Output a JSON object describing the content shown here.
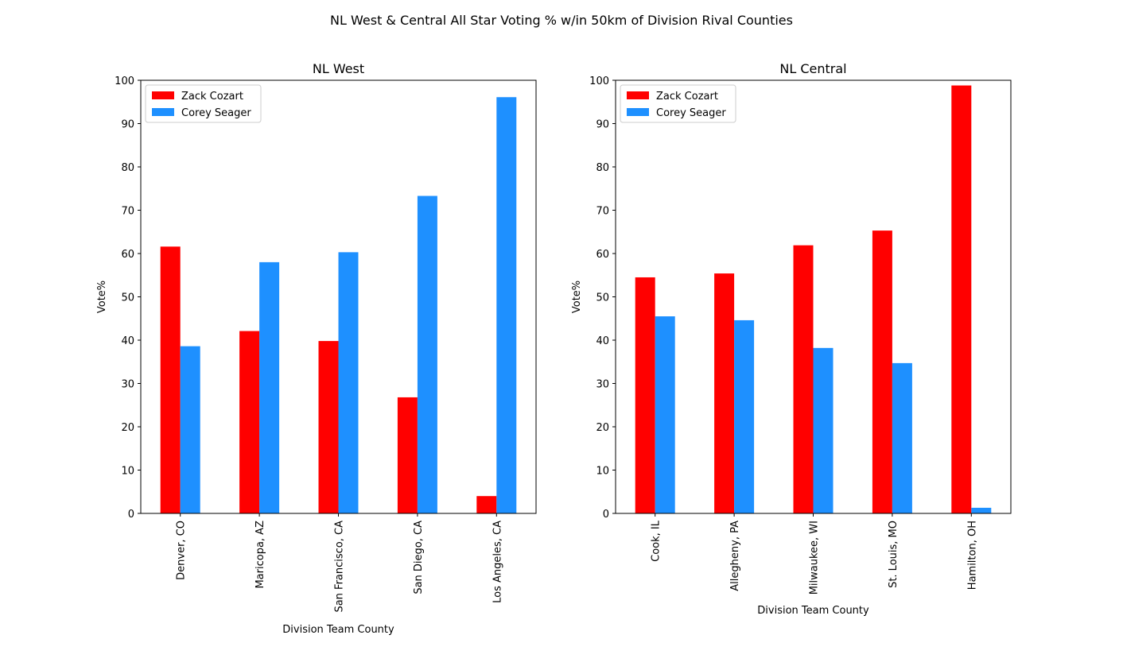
{
  "figure": {
    "title": "NL West & Central All Star Voting % w/in 50km of Division Rival Counties"
  },
  "chart_data": [
    {
      "type": "bar",
      "title": "NL West",
      "xlabel": "Division Team County",
      "ylabel": "Vote%",
      "ylim": [
        0,
        100
      ],
      "yticks": [
        0,
        10,
        20,
        30,
        40,
        50,
        60,
        70,
        80,
        90,
        100
      ],
      "categories": [
        "Denver, CO",
        "Maricopa, AZ",
        "San Francisco, CA",
        "San Diego, CA",
        "Los Angeles, CA"
      ],
      "series": [
        {
          "name": "Zack Cozart",
          "color": "#ff0000",
          "values": [
            61.6,
            42.1,
            39.8,
            26.8,
            4.0
          ]
        },
        {
          "name": "Corey Seager",
          "color": "#1e90ff",
          "values": [
            38.6,
            58.0,
            60.3,
            73.3,
            96.1
          ]
        }
      ],
      "legend": "upper-left",
      "grid": false
    },
    {
      "type": "bar",
      "title": "NL Central",
      "xlabel": "Division Team County",
      "ylabel": "Vote%",
      "ylim": [
        0,
        100
      ],
      "yticks": [
        0,
        10,
        20,
        30,
        40,
        50,
        60,
        70,
        80,
        90,
        100
      ],
      "categories": [
        "Cook, IL",
        "Allegheny, PA",
        "Milwaukee, WI",
        "St. Louis, MO",
        "Hamilton, OH"
      ],
      "series": [
        {
          "name": "Zack Cozart",
          "color": "#ff0000",
          "values": [
            54.5,
            55.4,
            61.9,
            65.3,
            98.8
          ]
        },
        {
          "name": "Corey Seager",
          "color": "#1e90ff",
          "values": [
            45.5,
            44.6,
            38.2,
            34.7,
            1.3
          ]
        }
      ],
      "legend": "upper-left",
      "grid": false
    }
  ]
}
